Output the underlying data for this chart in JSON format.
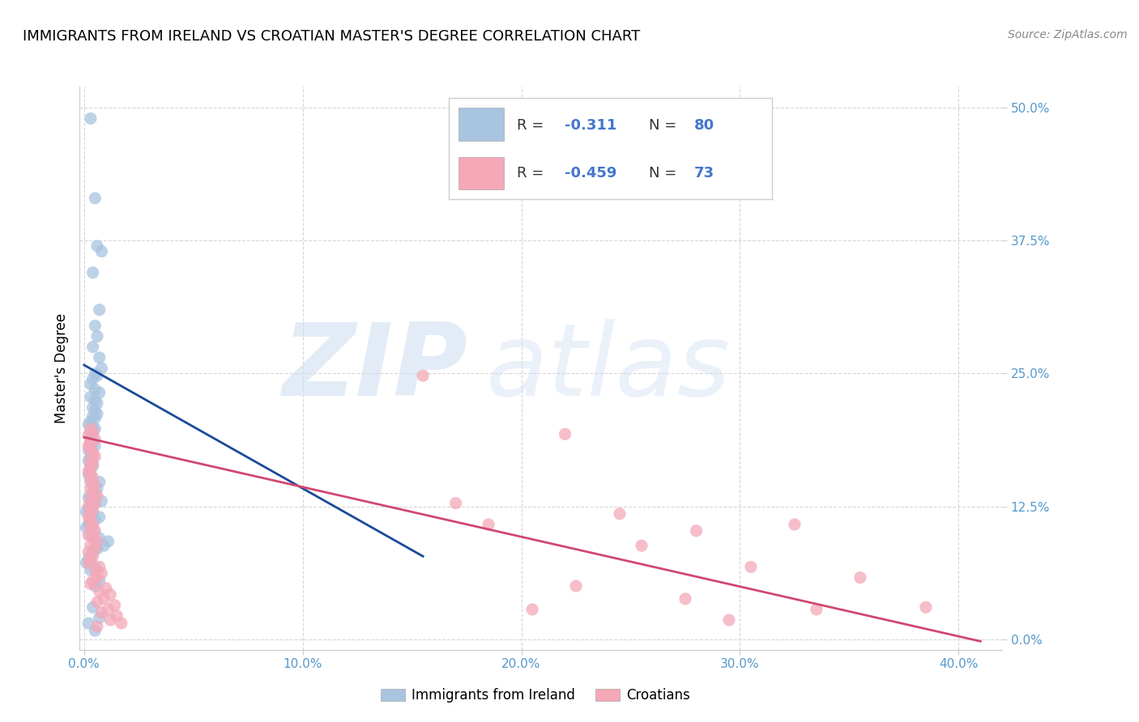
{
  "title": "IMMIGRANTS FROM IRELAND VS CROATIAN MASTER'S DEGREE CORRELATION CHART",
  "source": "Source: ZipAtlas.com",
  "xlim": [
    -0.002,
    0.42
  ],
  "ylim": [
    -0.01,
    0.52
  ],
  "x_ticks": [
    0.0,
    0.1,
    0.2,
    0.3,
    0.4
  ],
  "y_ticks": [
    0.0,
    0.125,
    0.25,
    0.375,
    0.5
  ],
  "x_tick_labels": [
    "0.0%",
    "10.0%",
    "20.0%",
    "30.0%",
    "40.0%"
  ],
  "y_tick_labels": [
    "0.0%",
    "12.5%",
    "25.0%",
    "37.5%",
    "50.0%"
  ],
  "legend_r_blue": "-0.311",
  "legend_n_blue": "80",
  "legend_r_pink": "-0.459",
  "legend_n_pink": "73",
  "legend_label_blue": "Immigrants from Ireland",
  "legend_label_pink": "Croatians",
  "watermark_zip": "ZIP",
  "watermark_atlas": "atlas",
  "blue_color": "#a8c4e0",
  "pink_color": "#f4a8b8",
  "blue_line_color": "#1a4a9a",
  "pink_line_color": "#d04870",
  "accent_color": "#4477cc",
  "blue_scatter": [
    [
      0.003,
      0.49
    ],
    [
      0.005,
      0.415
    ],
    [
      0.004,
      0.345
    ],
    [
      0.006,
      0.37
    ],
    [
      0.007,
      0.31
    ],
    [
      0.008,
      0.365
    ],
    [
      0.005,
      0.295
    ],
    [
      0.006,
      0.285
    ],
    [
      0.004,
      0.275
    ],
    [
      0.007,
      0.265
    ],
    [
      0.008,
      0.255
    ],
    [
      0.005,
      0.25
    ],
    [
      0.006,
      0.248
    ],
    [
      0.004,
      0.245
    ],
    [
      0.003,
      0.24
    ],
    [
      0.005,
      0.235
    ],
    [
      0.007,
      0.232
    ],
    [
      0.003,
      0.228
    ],
    [
      0.005,
      0.225
    ],
    [
      0.006,
      0.222
    ],
    [
      0.004,
      0.218
    ],
    [
      0.005,
      0.215
    ],
    [
      0.006,
      0.212
    ],
    [
      0.004,
      0.21
    ],
    [
      0.005,
      0.208
    ],
    [
      0.003,
      0.205
    ],
    [
      0.002,
      0.202
    ],
    [
      0.004,
      0.2
    ],
    [
      0.005,
      0.198
    ],
    [
      0.003,
      0.195
    ],
    [
      0.004,
      0.192
    ],
    [
      0.003,
      0.188
    ],
    [
      0.004,
      0.185
    ],
    [
      0.005,
      0.182
    ],
    [
      0.003,
      0.18
    ],
    [
      0.002,
      0.178
    ],
    [
      0.003,
      0.175
    ],
    [
      0.004,
      0.172
    ],
    [
      0.003,
      0.17
    ],
    [
      0.002,
      0.168
    ],
    [
      0.003,
      0.165
    ],
    [
      0.004,
      0.163
    ],
    [
      0.003,
      0.16
    ],
    [
      0.002,
      0.155
    ],
    [
      0.003,
      0.15
    ],
    [
      0.007,
      0.148
    ],
    [
      0.004,
      0.145
    ],
    [
      0.006,
      0.142
    ],
    [
      0.005,
      0.138
    ],
    [
      0.003,
      0.135
    ],
    [
      0.002,
      0.133
    ],
    [
      0.008,
      0.13
    ],
    [
      0.005,
      0.128
    ],
    [
      0.003,
      0.125
    ],
    [
      0.002,
      0.122
    ],
    [
      0.001,
      0.12
    ],
    [
      0.004,
      0.118
    ],
    [
      0.007,
      0.115
    ],
    [
      0.005,
      0.112
    ],
    [
      0.003,
      0.11
    ],
    [
      0.002,
      0.108
    ],
    [
      0.001,
      0.105
    ],
    [
      0.004,
      0.102
    ],
    [
      0.003,
      0.098
    ],
    [
      0.007,
      0.095
    ],
    [
      0.011,
      0.092
    ],
    [
      0.009,
      0.088
    ],
    [
      0.006,
      0.085
    ],
    [
      0.004,
      0.082
    ],
    [
      0.003,
      0.079
    ],
    [
      0.002,
      0.075
    ],
    [
      0.001,
      0.072
    ],
    [
      0.005,
      0.068
    ],
    [
      0.003,
      0.065
    ],
    [
      0.007,
      0.055
    ],
    [
      0.005,
      0.05
    ],
    [
      0.004,
      0.03
    ],
    [
      0.007,
      0.02
    ],
    [
      0.002,
      0.015
    ],
    [
      0.005,
      0.008
    ]
  ],
  "pink_scatter": [
    [
      0.003,
      0.198
    ],
    [
      0.004,
      0.195
    ],
    [
      0.002,
      0.192
    ],
    [
      0.005,
      0.188
    ],
    [
      0.003,
      0.185
    ],
    [
      0.002,
      0.182
    ],
    [
      0.003,
      0.178
    ],
    [
      0.004,
      0.175
    ],
    [
      0.005,
      0.172
    ],
    [
      0.003,
      0.168
    ],
    [
      0.004,
      0.165
    ],
    [
      0.003,
      0.162
    ],
    [
      0.002,
      0.158
    ],
    [
      0.003,
      0.155
    ],
    [
      0.004,
      0.152
    ],
    [
      0.003,
      0.148
    ],
    [
      0.005,
      0.145
    ],
    [
      0.003,
      0.142
    ],
    [
      0.004,
      0.138
    ],
    [
      0.006,
      0.135
    ],
    [
      0.003,
      0.132
    ],
    [
      0.005,
      0.128
    ],
    [
      0.002,
      0.125
    ],
    [
      0.004,
      0.122
    ],
    [
      0.003,
      0.118
    ],
    [
      0.002,
      0.115
    ],
    [
      0.003,
      0.112
    ],
    [
      0.004,
      0.108
    ],
    [
      0.003,
      0.105
    ],
    [
      0.005,
      0.102
    ],
    [
      0.002,
      0.098
    ],
    [
      0.004,
      0.095
    ],
    [
      0.006,
      0.092
    ],
    [
      0.003,
      0.088
    ],
    [
      0.005,
      0.085
    ],
    [
      0.002,
      0.082
    ],
    [
      0.004,
      0.078
    ],
    [
      0.003,
      0.075
    ],
    [
      0.002,
      0.072
    ],
    [
      0.007,
      0.068
    ],
    [
      0.005,
      0.065
    ],
    [
      0.008,
      0.062
    ],
    [
      0.006,
      0.058
    ],
    [
      0.004,
      0.055
    ],
    [
      0.003,
      0.052
    ],
    [
      0.01,
      0.048
    ],
    [
      0.007,
      0.045
    ],
    [
      0.012,
      0.042
    ],
    [
      0.009,
      0.038
    ],
    [
      0.006,
      0.035
    ],
    [
      0.014,
      0.032
    ],
    [
      0.011,
      0.028
    ],
    [
      0.008,
      0.025
    ],
    [
      0.015,
      0.022
    ],
    [
      0.012,
      0.018
    ],
    [
      0.017,
      0.015
    ],
    [
      0.006,
      0.012
    ],
    [
      0.155,
      0.248
    ],
    [
      0.22,
      0.193
    ],
    [
      0.17,
      0.128
    ],
    [
      0.245,
      0.118
    ],
    [
      0.185,
      0.108
    ],
    [
      0.28,
      0.102
    ],
    [
      0.325,
      0.108
    ],
    [
      0.255,
      0.088
    ],
    [
      0.305,
      0.068
    ],
    [
      0.355,
      0.058
    ],
    [
      0.385,
      0.03
    ],
    [
      0.225,
      0.05
    ],
    [
      0.275,
      0.038
    ],
    [
      0.335,
      0.028
    ],
    [
      0.295,
      0.018
    ],
    [
      0.205,
      0.028
    ]
  ],
  "blue_trend_x": [
    0.0,
    0.155
  ],
  "blue_trend_y": [
    0.258,
    0.078
  ],
  "pink_trend_x": [
    0.0,
    0.41
  ],
  "pink_trend_y": [
    0.19,
    -0.002
  ],
  "grid_color": "#cccccc",
  "background_color": "#ffffff",
  "title_fontsize": 13,
  "axis_tick_color": "#5599cc",
  "ylabel": "Master's Degree"
}
